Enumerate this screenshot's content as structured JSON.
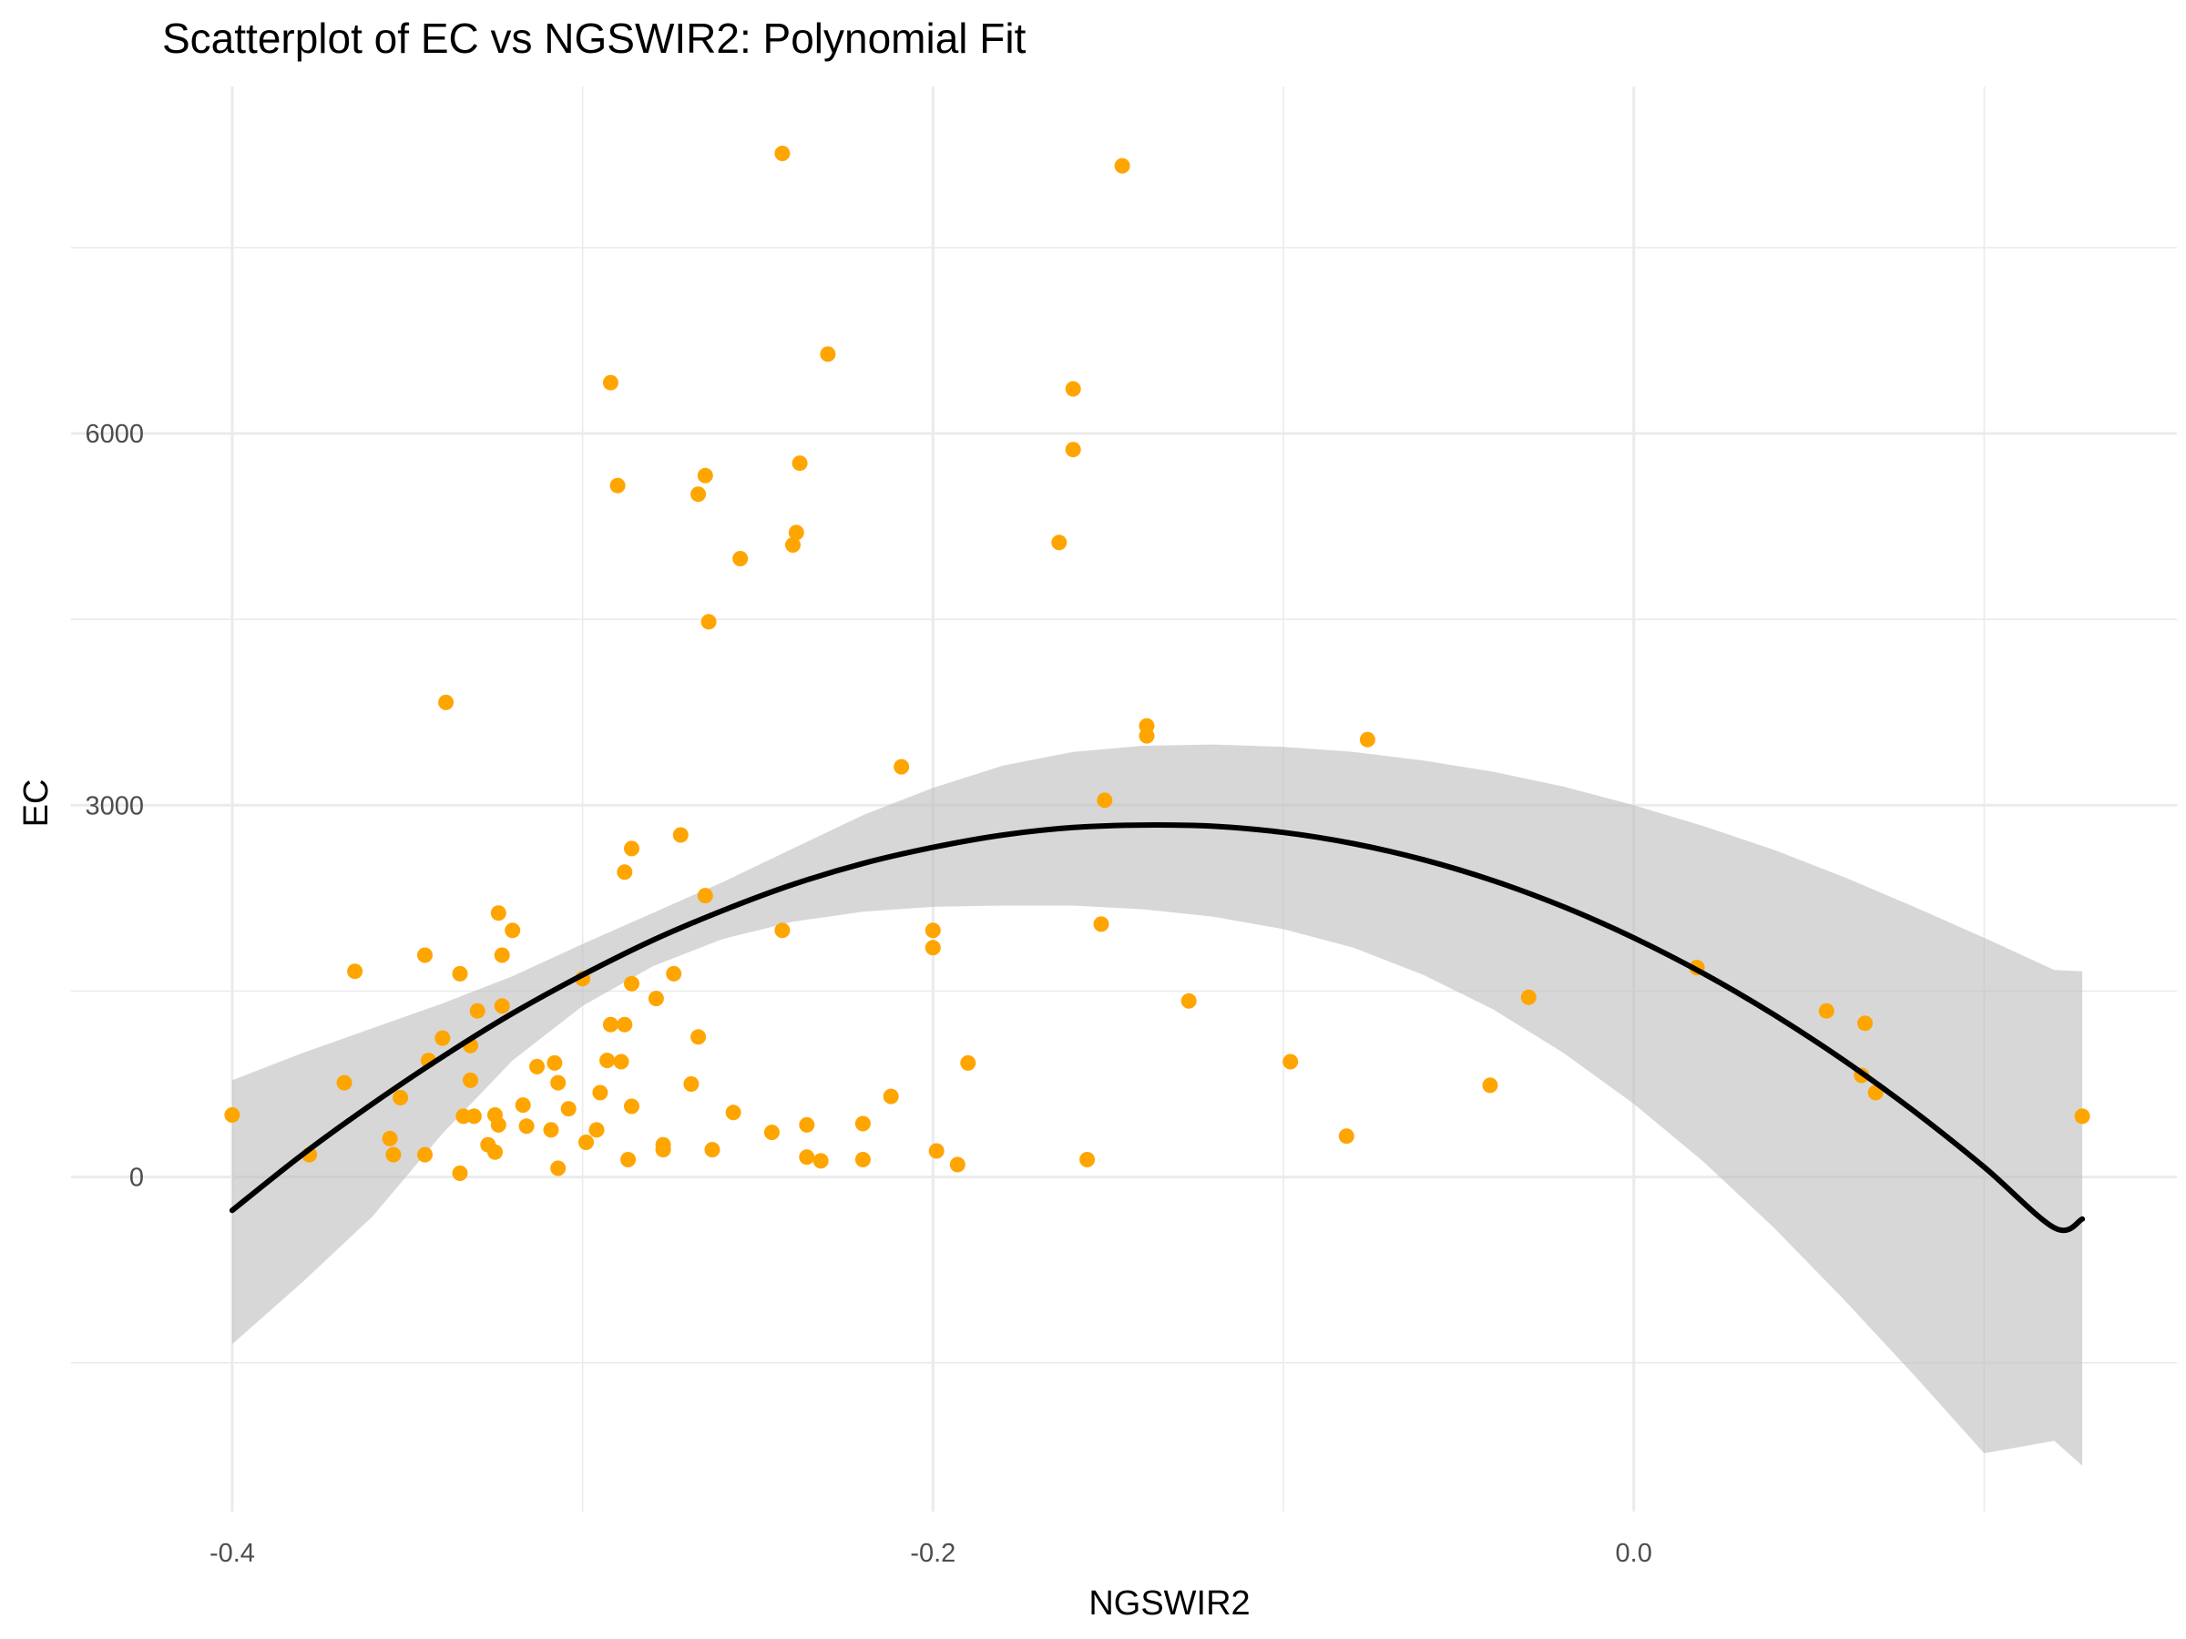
{
  "chart_data": {
    "type": "scatter",
    "title": "Scatterplot of EC vs NGSWIR2: Polynomial Fit",
    "xlabel": "NGSWIR2",
    "ylabel": "EC",
    "xlim": [
      -0.42,
      0.155
    ],
    "ylim": [
      -2700,
      8800
    ],
    "x_ticks": [
      -0.4,
      -0.2,
      0.0
    ],
    "x_tick_labels": [
      "-0.4",
      "-0.2",
      "0.0"
    ],
    "x_minor_ticks": [
      -0.3,
      -0.1,
      0.1
    ],
    "y_ticks": [
      0,
      3000,
      6000
    ],
    "y_tick_labels": [
      "0",
      "3000",
      "6000"
    ],
    "y_minor_ticks": [
      -1500,
      1500,
      4500,
      7500
    ],
    "grid": true,
    "colors": {
      "points": "#FFA500",
      "fit_line": "#000000",
      "ribbon": "#BEBEBE"
    },
    "points": [
      [
        -0.4,
        500
      ],
      [
        -0.378,
        180
      ],
      [
        -0.368,
        760
      ],
      [
        -0.365,
        1660
      ],
      [
        -0.355,
        310
      ],
      [
        -0.354,
        180
      ],
      [
        -0.352,
        640
      ],
      [
        -0.345,
        1790
      ],
      [
        -0.345,
        180
      ],
      [
        -0.344,
        940
      ],
      [
        -0.34,
        1120
      ],
      [
        -0.339,
        3830
      ],
      [
        -0.335,
        1640
      ],
      [
        -0.335,
        30
      ],
      [
        -0.334,
        490
      ],
      [
        -0.332,
        780
      ],
      [
        -0.332,
        1060
      ],
      [
        -0.331,
        490
      ],
      [
        -0.33,
        1340
      ],
      [
        -0.327,
        260
      ],
      [
        -0.325,
        500
      ],
      [
        -0.325,
        200
      ],
      [
        -0.324,
        420
      ],
      [
        -0.324,
        2130
      ],
      [
        -0.323,
        1380
      ],
      [
        -0.323,
        1790
      ],
      [
        -0.32,
        1990
      ],
      [
        -0.317,
        580
      ],
      [
        -0.316,
        410
      ],
      [
        -0.313,
        890
      ],
      [
        -0.309,
        380
      ],
      [
        -0.308,
        920
      ],
      [
        -0.307,
        70
      ],
      [
        -0.307,
        760
      ],
      [
        -0.304,
        550
      ],
      [
        -0.3,
        1600
      ],
      [
        -0.299,
        280
      ],
      [
        -0.296,
        380
      ],
      [
        -0.295,
        680
      ],
      [
        -0.293,
        940
      ],
      [
        -0.292,
        6410
      ],
      [
        -0.292,
        1230
      ],
      [
        -0.29,
        5580
      ],
      [
        -0.289,
        930
      ],
      [
        -0.288,
        2460
      ],
      [
        -0.288,
        1230
      ],
      [
        -0.287,
        140
      ],
      [
        -0.286,
        570
      ],
      [
        -0.286,
        2650
      ],
      [
        -0.286,
        1560
      ],
      [
        -0.279,
        1440
      ],
      [
        -0.277,
        260
      ],
      [
        -0.277,
        220
      ],
      [
        -0.274,
        1640
      ],
      [
        -0.272,
        2760
      ],
      [
        -0.269,
        750
      ],
      [
        -0.267,
        1130
      ],
      [
        -0.267,
        5510
      ],
      [
        -0.265,
        5660
      ],
      [
        -0.265,
        2270
      ],
      [
        -0.264,
        4480
      ],
      [
        -0.263,
        220
      ],
      [
        -0.257,
        520
      ],
      [
        -0.255,
        4990
      ],
      [
        -0.246,
        360
      ],
      [
        -0.243,
        8260
      ],
      [
        -0.243,
        1990
      ],
      [
        -0.24,
        5100
      ],
      [
        -0.239,
        5200
      ],
      [
        -0.238,
        5760
      ],
      [
        -0.236,
        420
      ],
      [
        -0.236,
        160
      ],
      [
        -0.232,
        130
      ],
      [
        -0.23,
        6640
      ],
      [
        -0.22,
        430
      ],
      [
        -0.22,
        140
      ],
      [
        -0.212,
        650
      ],
      [
        -0.209,
        3310
      ],
      [
        -0.2,
        1990
      ],
      [
        -0.2,
        1850
      ],
      [
        -0.199,
        210
      ],
      [
        -0.193,
        100
      ],
      [
        -0.19,
        920
      ],
      [
        -0.164,
        5120
      ],
      [
        -0.16,
        6360
      ],
      [
        -0.16,
        5870
      ],
      [
        -0.156,
        140
      ],
      [
        -0.152,
        2040
      ],
      [
        -0.151,
        3040
      ],
      [
        -0.146,
        8160
      ],
      [
        -0.139,
        3640
      ],
      [
        -0.139,
        3560
      ],
      [
        -0.127,
        1420
      ],
      [
        -0.098,
        930
      ],
      [
        -0.082,
        330
      ],
      [
        -0.076,
        3530
      ],
      [
        -0.041,
        740
      ],
      [
        -0.03,
        1450
      ],
      [
        0.018,
        1690
      ],
      [
        0.055,
        1340
      ],
      [
        0.065,
        820
      ],
      [
        0.066,
        1240
      ],
      [
        0.069,
        680
      ],
      [
        0.128,
        490
      ]
    ],
    "fit": {
      "label": "Polynomial Fit",
      "x": [
        -0.4,
        -0.38,
        -0.36,
        -0.34,
        -0.32,
        -0.3,
        -0.28,
        -0.26,
        -0.24,
        -0.22,
        -0.2,
        -0.18,
        -0.16,
        -0.14,
        -0.12,
        -0.1,
        -0.08,
        -0.06,
        -0.04,
        -0.02,
        0.0,
        0.02,
        0.04,
        0.06,
        0.08,
        0.1,
        0.12,
        0.128
      ],
      "y": [
        -270,
        180,
        590,
        970,
        1320,
        1630,
        1910,
        2150,
        2360,
        2530,
        2660,
        2760,
        2820,
        2840,
        2830,
        2780,
        2690,
        2560,
        2390,
        2180,
        1930,
        1640,
        1310,
        940,
        530,
        80,
        -410,
        -340
      ],
      "lower": [
        -1350,
        -850,
        -320,
        350,
        940,
        1380,
        1700,
        1920,
        2060,
        2140,
        2180,
        2190,
        2190,
        2160,
        2100,
        2000,
        1850,
        1630,
        1350,
        1000,
        590,
        120,
        -410,
        -990,
        -1600,
        -2230,
        -2130,
        -2330
      ],
      "upper": [
        780,
        1000,
        1200,
        1400,
        1620,
        1880,
        2130,
        2380,
        2650,
        2920,
        3140,
        3320,
        3430,
        3480,
        3490,
        3470,
        3430,
        3360,
        3270,
        3150,
        3000,
        2830,
        2640,
        2420,
        2180,
        1930,
        1670,
        1660
      ]
    }
  }
}
